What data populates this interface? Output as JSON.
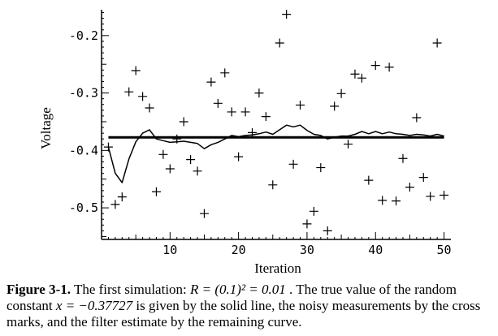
{
  "caption": {
    "label": "Figure 3-1.",
    "text_1": " The first simulation: ",
    "math_1": "R = (0.1)² = 0.01",
    "text_2": " . The true value of the random constant ",
    "math_2": "x = −0.37727",
    "text_3": " is given by the solid line, the noisy measurements by the cross marks, and the filter estimate by the remaining curve."
  },
  "chart_data": {
    "type": "line",
    "xlabel": "Iteration",
    "ylabel": "Voltage",
    "xlim": [
      0,
      51
    ],
    "ylim": [
      -0.555,
      -0.155
    ],
    "x_ticks": [
      10,
      20,
      30,
      40,
      50
    ],
    "x_tick_labels": [
      "10",
      "20",
      "30",
      "40",
      "50"
    ],
    "y_ticks": [
      -0.2,
      -0.3,
      -0.4,
      -0.5
    ],
    "y_tick_labels": [
      "-0.2",
      "-0.3",
      "-0.4",
      "-0.5"
    ],
    "grid": false,
    "legend": "none",
    "true_value": -0.37727,
    "measurements": {
      "x": [
        1,
        2,
        3,
        4,
        5,
        6,
        7,
        8,
        9,
        10,
        11,
        12,
        13,
        14,
        15,
        16,
        17,
        18,
        19,
        20,
        21,
        22,
        23,
        24,
        25,
        26,
        27,
        28,
        29,
        30,
        31,
        32,
        33,
        34,
        35,
        36,
        37,
        38,
        39,
        40,
        41,
        42,
        43,
        44,
        45,
        46,
        47,
        48,
        49,
        50
      ],
      "y": [
        -0.394,
        -0.494,
        -0.481,
        -0.298,
        -0.261,
        -0.306,
        -0.326,
        -0.472,
        -0.407,
        -0.432,
        -0.38,
        -0.35,
        -0.416,
        -0.436,
        -0.51,
        -0.281,
        -0.318,
        -0.265,
        -0.333,
        -0.411,
        -0.333,
        -0.369,
        -0.3,
        -0.341,
        -0.46,
        -0.213,
        -0.163,
        -0.424,
        -0.321,
        -0.528,
        -0.506,
        -0.43,
        -0.54,
        -0.323,
        -0.301,
        -0.389,
        -0.267,
        -0.274,
        -0.452,
        -0.252,
        -0.487,
        -0.255,
        -0.488,
        -0.414,
        -0.464,
        -0.343,
        -0.447,
        -0.48,
        -0.213,
        -0.478
      ]
    },
    "estimate": {
      "x": [
        1,
        2,
        3,
        4,
        5,
        6,
        7,
        8,
        9,
        10,
        11,
        12,
        13,
        14,
        15,
        16,
        17,
        18,
        19,
        20,
        21,
        22,
        23,
        24,
        25,
        26,
        27,
        28,
        29,
        30,
        31,
        32,
        33,
        34,
        35,
        36,
        37,
        38,
        39,
        40,
        41,
        42,
        43,
        44,
        45,
        46,
        47,
        48,
        49,
        50
      ],
      "y": [
        -0.394,
        -0.44,
        -0.456,
        -0.415,
        -0.385,
        -0.37,
        -0.364,
        -0.38,
        -0.383,
        -0.386,
        -0.385,
        -0.384,
        -0.386,
        -0.388,
        -0.397,
        -0.39,
        -0.386,
        -0.38,
        -0.374,
        -0.376,
        -0.374,
        -0.373,
        -0.371,
        -0.368,
        -0.372,
        -0.364,
        -0.356,
        -0.359,
        -0.356,
        -0.365,
        -0.372,
        -0.374,
        -0.38,
        -0.377,
        -0.375,
        -0.375,
        -0.372,
        -0.367,
        -0.371,
        -0.367,
        -0.371,
        -0.368,
        -0.371,
        -0.372,
        -0.374,
        -0.372,
        -0.373,
        -0.375,
        -0.372,
        -0.375
      ]
    }
  }
}
